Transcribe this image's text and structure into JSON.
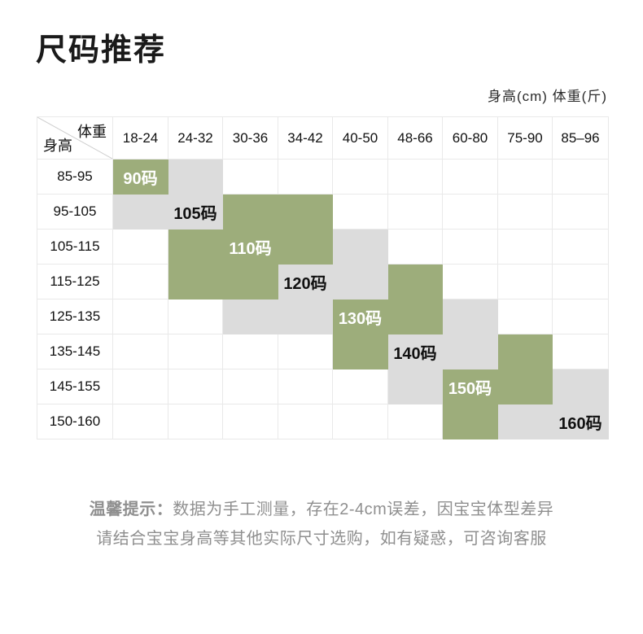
{
  "page": {
    "title": "尺码推荐",
    "unit_label": "身高(cm) 体重(斤)",
    "tips": {
      "prefix": "温馨提示：",
      "line1": "数据为手工测量，存在2-4cm误差，因宝宝体型差异",
      "line2": "请结合宝宝身高等其他实际尺寸选购，如有疑惑，可咨询客服"
    }
  },
  "chart_data": {
    "type": "table",
    "title": "尺码推荐",
    "corner": {
      "weight": "体重",
      "height": "身高"
    },
    "weight_columns_jin": [
      "18-24",
      "24-32",
      "30-36",
      "34-42",
      "40-50",
      "48-66",
      "60-80",
      "75-90",
      "85–96"
    ],
    "height_rows_cm": [
      "85-95",
      "95-105",
      "105-115",
      "115-125",
      "125-135",
      "135-145",
      "145-155",
      "150-160"
    ],
    "cell_matrix": [
      "GY.......",
      "YYGG.....",
      ".GGGY....",
      ".GGYYG...",
      "..YYGGY..",
      "....GYYG.",
      ".....YGGY",
      "......GYY"
    ],
    "size_labels": [
      {
        "row": 0,
        "col": 0,
        "text": "90码"
      },
      {
        "row": 1,
        "col": 1,
        "text": "105码"
      },
      {
        "row": 2,
        "col": 2,
        "text": "110码"
      },
      {
        "row": 3,
        "col": 3,
        "text": "120码"
      },
      {
        "row": 4,
        "col": 4,
        "text": "130码"
      },
      {
        "row": 5,
        "col": 5,
        "text": "140码"
      },
      {
        "row": 6,
        "col": 6,
        "text": "150码"
      },
      {
        "row": 7,
        "col": 8,
        "text": "160码"
      }
    ],
    "cell_colors": {
      "G": "#9DAD7B",
      "Y": "#DCDCDC"
    },
    "label_text_colors": {
      "G": "#FFFFFF",
      "Y": "#111111"
    },
    "grid_color": "#E9E9E9"
  }
}
